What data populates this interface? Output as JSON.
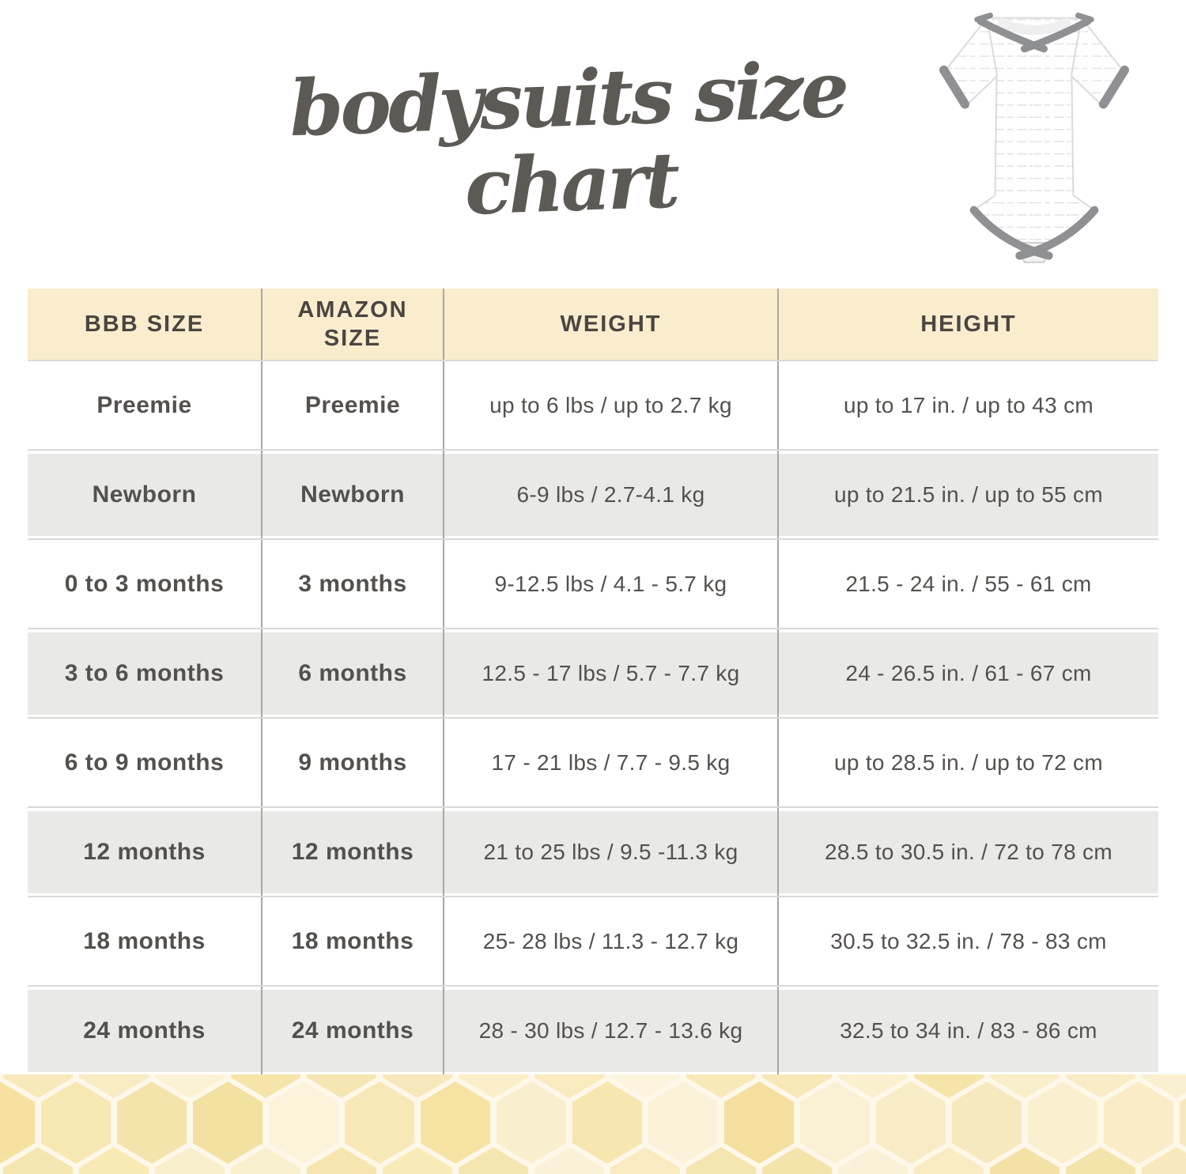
{
  "chart_data": {
    "type": "table",
    "title": "bodysuits size chart",
    "columns": [
      "BBB SIZE",
      "AMAZON SIZE",
      "WEIGHT",
      "HEIGHT"
    ],
    "rows": [
      {
        "bbb": "Preemie",
        "amazon": "Preemie",
        "weight": "up to 6 lbs / up to 2.7 kg",
        "height": "up to 17 in. / up to 43 cm"
      },
      {
        "bbb": "Newborn",
        "amazon": "Newborn",
        "weight": "6-9 lbs / 2.7-4.1 kg",
        "height": "up to 21.5 in. / up to 55 cm"
      },
      {
        "bbb": "0 to 3 months",
        "amazon": "3 months",
        "weight": "9-12.5 lbs / 4.1 - 5.7 kg",
        "height": "21.5 - 24 in. / 55 - 61 cm"
      },
      {
        "bbb": "3 to 6 months",
        "amazon": "6 months",
        "weight": "12.5 - 17 lbs / 5.7 - 7.7 kg",
        "height": "24 - 26.5 in. / 61 - 67 cm"
      },
      {
        "bbb": "6 to 9 months",
        "amazon": "9 months",
        "weight": "17 - 21 lbs / 7.7 - 9.5 kg",
        "height": "up to 28.5 in. / up to 72 cm"
      },
      {
        "bbb": "12 months",
        "amazon": "12 months",
        "weight": "21 to 25 lbs / 9.5 -11.3 kg",
        "height": "28.5 to 30.5 in. / 72 to 78 cm"
      },
      {
        "bbb": "18 months",
        "amazon": "18 months",
        "weight": "25- 28 lbs / 11.3 - 12.7 kg",
        "height": "30.5 to 32.5 in. / 78 - 83 cm"
      },
      {
        "bbb": "24 months",
        "amazon": "24 months",
        "weight": "28 - 30 lbs / 12.7 - 13.6 kg",
        "height": "32.5 to 34 in. / 83 - 86 cm"
      }
    ]
  },
  "icons": {
    "hero": "baby-bodysuit-photo"
  },
  "colors": {
    "title_text": "#5d5954",
    "header_bg": "#faedcd",
    "header_text": "#494642",
    "row_alt_bg": "#e9e9e7",
    "cell_text": "#53514d",
    "column_divider": "#a9a7a4",
    "row_divider": "#dbd9d6",
    "honey_bg": "#fdf8e9",
    "bodysuit_trim": "#8e9094",
    "honey_cells": [
      "#f2d883",
      "#eed279",
      "#f6e29c",
      "#f0d88a"
    ]
  }
}
